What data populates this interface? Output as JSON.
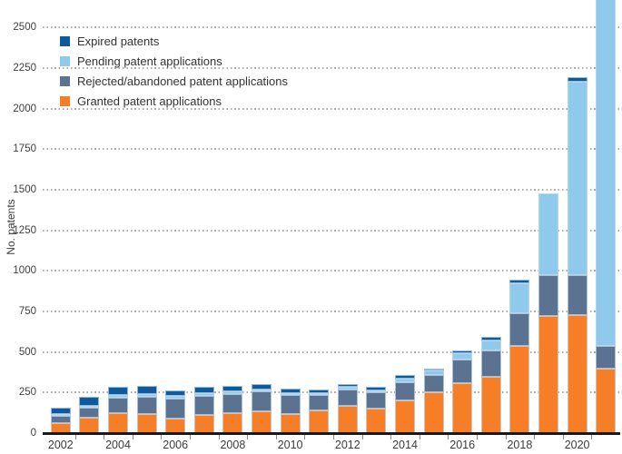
{
  "chart_data": {
    "type": "bar",
    "stacked": true,
    "title": "",
    "xlabel": "",
    "ylabel": "No. patents",
    "ylim": [
      0,
      2670
    ],
    "yticks": [
      0,
      250,
      500,
      750,
      1000,
      1250,
      1500,
      1750,
      2000,
      2250,
      2500
    ],
    "categories": [
      "2002",
      "2003",
      "2004",
      "2005",
      "2006",
      "2007",
      "2008",
      "2009",
      "2010",
      "2011",
      "2012",
      "2013",
      "2014",
      "2015",
      "2016",
      "2017",
      "2018",
      "2019",
      "2020",
      "2021"
    ],
    "xtick_labels": [
      "2002",
      "2004",
      "2006",
      "2008",
      "2010",
      "2012",
      "2014",
      "2016",
      "2018",
      "2020"
    ],
    "grid": "dotted-horizontal",
    "legend_position": "top-left",
    "legend": [
      {
        "label": "Expired patents",
        "color": "#0E5A9C"
      },
      {
        "label": "Pending patent applications",
        "color": "#8FC9EB"
      },
      {
        "label": "Rejected/abandoned patent applications",
        "color": "#5C7291"
      },
      {
        "label": "Granted patent applications",
        "color": "#F57E27"
      }
    ],
    "series": [
      {
        "name": "Granted patent applications",
        "color": "#F57E27",
        "values": [
          60,
          95,
          125,
          118,
          92,
          110,
          122,
          135,
          120,
          142,
          168,
          150,
          200,
          250,
          310,
          345,
          540,
          720,
          727,
          395
        ]
      },
      {
        "name": "Rejected/abandoned patent applications",
        "color": "#5C7291",
        "values": [
          45,
          62,
          95,
          108,
          122,
          120,
          118,
          121,
          113,
          95,
          100,
          100,
          112,
          108,
          145,
          165,
          200,
          255,
          248,
          145
        ]
      },
      {
        "name": "Pending patent applications",
        "color": "#8FC9EB",
        "values": [
          10,
          12,
          13,
          15,
          18,
          15,
          15,
          15,
          12,
          12,
          15,
          15,
          22,
          28,
          38,
          60,
          185,
          505,
          1190,
          2270
        ]
      },
      {
        "name": "Expired patents",
        "color": "#0E5A9C",
        "values": [
          40,
          56,
          52,
          50,
          33,
          43,
          38,
          29,
          27,
          18,
          18,
          22,
          26,
          14,
          18,
          25,
          22,
          0,
          28,
          0
        ]
      }
    ],
    "clipped_bars": [
      "2021"
    ]
  },
  "style_colors": {
    "axis_line": "#1A1A1A",
    "gridline": "#9C9C9C",
    "tick_text": "#404040",
    "segment_outline": "#C1DBF0"
  }
}
